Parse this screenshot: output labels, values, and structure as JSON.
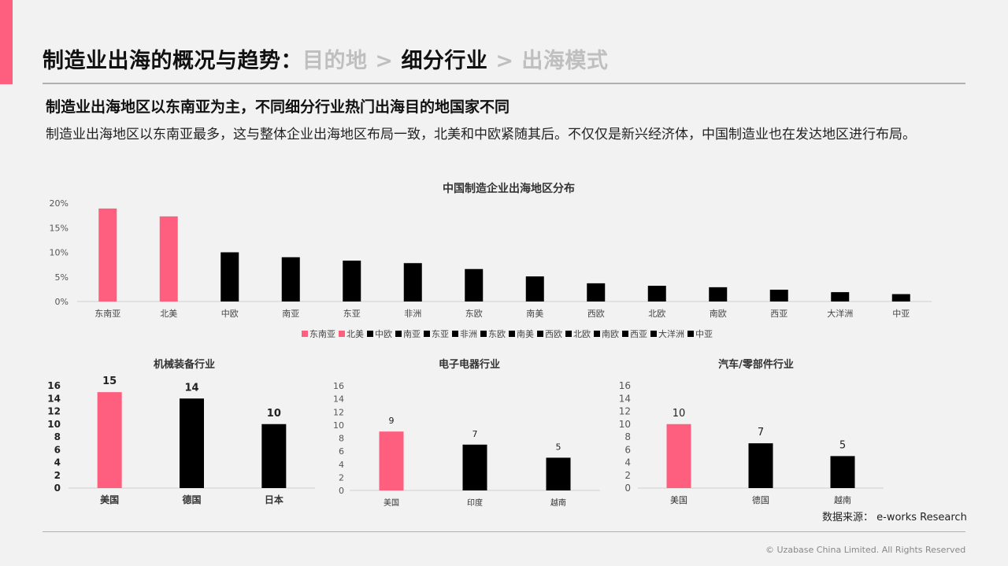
{
  "colors": {
    "accent": "#ff5f7e",
    "highlight": "#ff5f7e",
    "bar": "#000000",
    "axis": "#d0d0d0"
  },
  "header": {
    "part1": "制造业出海的概况与趋势：",
    "part2": "目的地",
    "sep1": " > ",
    "part3": "细分行业",
    "sep2": " > ",
    "part4": "出海模式"
  },
  "subtitle": "制造业出海地区以东南亚为主，不同细分行业热门出海目的地国家不同",
  "description": "制造业出海地区以东南亚最多，这与整体企业出海地区布局一致，北美和中欧紧随其后。不仅仅是新兴经济体，中国制造业也在发达地区进行布局。",
  "source": "数据来源：   e-works Research",
  "copyright": "© Uzabase China Limited. All Rights Reserved",
  "chart_data": [
    {
      "type": "bar",
      "title": "中国制造企业出海地区分布",
      "categories": [
        "东南亚",
        "北美",
        "中欧",
        "南亚",
        "东亚",
        "非洲",
        "东欧",
        "南美",
        "西欧",
        "北欧",
        "南欧",
        "西亚",
        "大洋洲",
        "中亚"
      ],
      "values": [
        18.9,
        17.3,
        10.0,
        9.0,
        8.3,
        7.8,
        6.6,
        5.1,
        3.7,
        3.2,
        2.9,
        2.4,
        1.9,
        1.5
      ],
      "highlight_count": 2,
      "yticks": [
        "0%",
        "5%",
        "10%",
        "15%",
        "20%"
      ],
      "ylim": [
        0,
        20
      ],
      "legend": [
        "东南亚",
        "北美",
        "中欧",
        "南亚",
        "东亚",
        "非洲",
        "东欧",
        "南美",
        "西欧",
        "北欧",
        "南欧",
        "西亚",
        "大洋洲",
        "中亚"
      ],
      "legend_position": "bottom",
      "grid": false
    },
    {
      "type": "bar",
      "title": "机械装备行业",
      "categories": [
        "美国",
        "德国",
        "日本"
      ],
      "values": [
        15,
        14,
        10
      ],
      "data_labels": [
        "15",
        "14",
        "10"
      ],
      "highlight_count": 1,
      "yticks": [
        "0",
        "2",
        "4",
        "6",
        "8",
        "10",
        "12",
        "14",
        "16"
      ],
      "ylim": [
        0,
        16
      ]
    },
    {
      "type": "bar",
      "title": "电子电器行业",
      "categories": [
        "美国",
        "印度",
        "越南"
      ],
      "values": [
        9,
        7,
        5
      ],
      "data_labels": [
        "9",
        "7",
        "5"
      ],
      "highlight_count": 1,
      "yticks": [
        "0",
        "2",
        "4",
        "6",
        "8",
        "10",
        "12",
        "14",
        "16"
      ],
      "ylim": [
        0,
        16
      ]
    },
    {
      "type": "bar",
      "title": "汽车/零部件行业",
      "categories": [
        "美国",
        "德国",
        "越南"
      ],
      "values": [
        10,
        7,
        5
      ],
      "data_labels": [
        "10",
        "7",
        "5"
      ],
      "highlight_count": 1,
      "yticks": [
        "0",
        "2",
        "4",
        "6",
        "8",
        "10",
        "12",
        "14",
        "16"
      ],
      "ylim": [
        0,
        16
      ]
    }
  ]
}
